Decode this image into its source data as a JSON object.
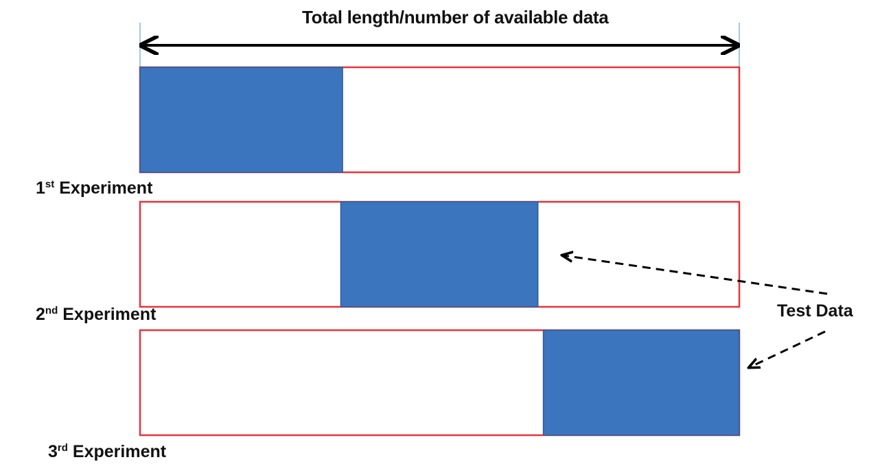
{
  "title": "Total length/number  of available data",
  "experiments": [
    {
      "ordinal": "1",
      "suffix": "st",
      "label": "Experiment",
      "test_start": 0.0,
      "test_end": 0.338
    },
    {
      "ordinal": "2",
      "suffix": "nd",
      "label": "Experiment",
      "test_start": 0.335,
      "test_end": 0.664
    },
    {
      "ordinal": "3",
      "suffix": "rd",
      "label": "Experiment",
      "test_start": 0.673,
      "test_end": 1.0
    }
  ],
  "test_label": "Test Data",
  "colors": {
    "test_fill": "#3a75bd",
    "test_stroke": "#2d5c99",
    "bar_outline": "#e8333a",
    "arrow": "#000000"
  }
}
